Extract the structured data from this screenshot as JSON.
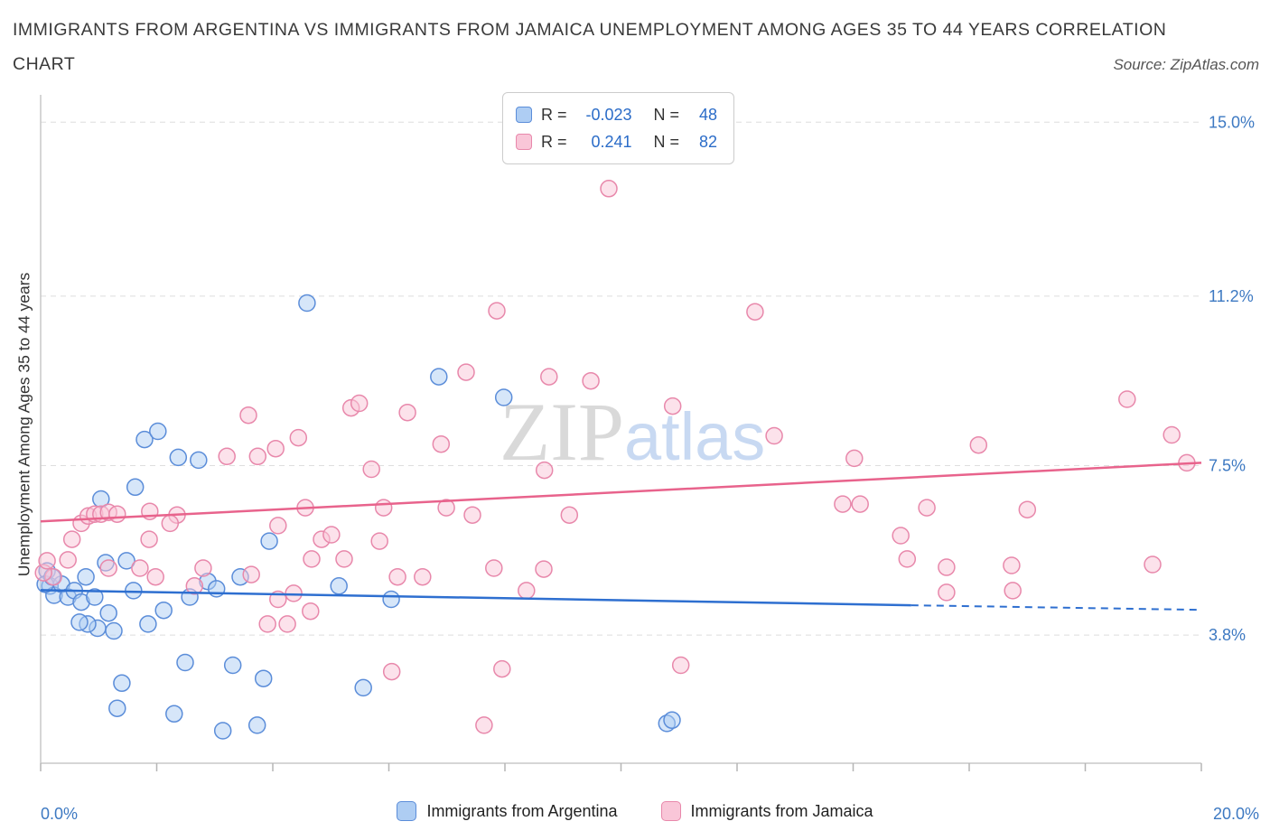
{
  "header": {
    "title_line1": "IMMIGRANTS FROM ARGENTINA VS IMMIGRANTS FROM JAMAICA UNEMPLOYMENT AMONG AGES 35 TO 44 YEARS CORRELATION",
    "title_line2": "CHART",
    "source": "Source: ZipAtlas.com"
  },
  "watermark": {
    "part1": "ZIP",
    "part2": "atlas"
  },
  "axes": {
    "y_title": "Unemployment Among Ages 35 to 44 years",
    "x_min_label": "0.0%",
    "x_max_label": "20.0%"
  },
  "stats_legend": {
    "rows": [
      {
        "key": "argentina",
        "r_label": "R =",
        "r_value": "-0.023",
        "n_label": "N =",
        "n_value": "48"
      },
      {
        "key": "jamaica",
        "r_label": "R =",
        "r_value": "0.241",
        "n_label": "N =",
        "n_value": "82"
      }
    ]
  },
  "bottom_legend": {
    "argentina": "Immigrants from Argentina",
    "jamaica": "Immigrants from Jamaica"
  },
  "colors": {
    "tick_label": "#3d79c2",
    "stat_value": "#2b6cc8",
    "grid": "#dedede",
    "axis": "#c8c8c8",
    "argentina_fill": "#aecdf3",
    "argentina_stroke": "#5b8dd9",
    "jamaica_fill": "#f9c6d8",
    "jamaica_stroke": "#e888ab",
    "argentina_trend": "#2e6fd0",
    "jamaica_trend": "#e8638c"
  },
  "chart_data": {
    "type": "scatter",
    "title": "Immigrants from Argentina vs Immigrants from Jamaica Unemployment Among Ages 35 to 44 years Correlation Chart",
    "xlabel": "",
    "ylabel": "Unemployment Among Ages 35 to 44 years",
    "xlim": [
      0,
      20
    ],
    "ylim": [
      1.0,
      15.4
    ],
    "legend_position": "bottom-center",
    "grid": "horizontal-dashed",
    "gridlines": [
      {
        "value": 15.0,
        "label": "15.0%"
      },
      {
        "value": 11.2,
        "label": "11.2%"
      },
      {
        "value": 7.5,
        "label": "7.5%"
      },
      {
        "value": 3.8,
        "label": "3.8%"
      }
    ],
    "x_ticks": [
      0,
      2,
      4,
      6,
      8,
      10,
      12,
      14,
      16,
      18,
      20
    ],
    "series": [
      {
        "key": "argentina",
        "name": "Immigrants from Argentina",
        "R": -0.023,
        "N": 48,
        "fill": "#aecdf3",
        "stroke": "#5b8dd9",
        "points": [
          [
            0.11,
            5.2
          ],
          [
            0.16,
            4.87
          ],
          [
            0.23,
            4.67
          ],
          [
            0.36,
            4.91
          ],
          [
            0.47,
            4.63
          ],
          [
            0.58,
            4.77
          ],
          [
            0.7,
            4.52
          ],
          [
            0.78,
            5.07
          ],
          [
            0.93,
            4.63
          ],
          [
            1.12,
            5.38
          ],
          [
            1.48,
            5.42
          ],
          [
            1.6,
            4.77
          ],
          [
            1.79,
            8.07
          ],
          [
            2.02,
            8.25
          ],
          [
            2.37,
            7.68
          ],
          [
            2.72,
            7.62
          ],
          [
            4.59,
            11.05
          ],
          [
            6.86,
            9.44
          ],
          [
            7.98,
            8.99
          ],
          [
            3.94,
            5.85
          ],
          [
            3.44,
            5.07
          ],
          [
            2.88,
            4.97
          ],
          [
            3.03,
            4.81
          ],
          [
            2.57,
            4.63
          ],
          [
            2.12,
            4.34
          ],
          [
            1.85,
            4.04
          ],
          [
            1.26,
            3.89
          ],
          [
            0.98,
            3.95
          ],
          [
            1.4,
            2.75
          ],
          [
            1.32,
            2.2
          ],
          [
            2.49,
            3.2
          ],
          [
            2.3,
            2.08
          ],
          [
            3.14,
            1.71
          ],
          [
            3.73,
            1.83
          ],
          [
            3.84,
            2.85
          ],
          [
            3.31,
            3.14
          ],
          [
            5.56,
            2.65
          ],
          [
            6.04,
            4.58
          ],
          [
            5.14,
            4.87
          ],
          [
            10.79,
            1.87
          ],
          [
            10.88,
            1.94
          ],
          [
            1.17,
            4.28
          ],
          [
            0.81,
            4.04
          ],
          [
            0.67,
            4.08
          ],
          [
            0.08,
            4.91
          ],
          [
            0.2,
            5.07
          ],
          [
            1.04,
            6.77
          ],
          [
            1.63,
            7.03
          ]
        ]
      },
      {
        "key": "jamaica",
        "name": "Immigrants from Jamaica",
        "R": 0.241,
        "N": 82,
        "fill": "#f9c6d8",
        "stroke": "#e888ab",
        "points": [
          [
            10.24,
            14.43
          ],
          [
            9.79,
            13.55
          ],
          [
            7.86,
            10.88
          ],
          [
            12.31,
            10.86
          ],
          [
            7.33,
            9.54
          ],
          [
            8.76,
            9.44
          ],
          [
            9.48,
            9.35
          ],
          [
            3.58,
            8.6
          ],
          [
            6.32,
            8.66
          ],
          [
            5.35,
            8.76
          ],
          [
            5.49,
            8.86
          ],
          [
            10.89,
            8.8
          ],
          [
            18.72,
            8.95
          ],
          [
            19.49,
            8.17
          ],
          [
            19.75,
            7.56
          ],
          [
            16.16,
            7.95
          ],
          [
            12.64,
            8.15
          ],
          [
            14.02,
            7.66
          ],
          [
            4.05,
            7.87
          ],
          [
            4.44,
            8.11
          ],
          [
            3.21,
            7.7
          ],
          [
            3.74,
            7.7
          ],
          [
            6.9,
            7.97
          ],
          [
            5.7,
            7.42
          ],
          [
            8.68,
            7.4
          ],
          [
            1.88,
            6.5
          ],
          [
            2.35,
            6.42
          ],
          [
            2.23,
            6.24
          ],
          [
            4.56,
            6.58
          ],
          [
            5.91,
            6.58
          ],
          [
            9.11,
            6.42
          ],
          [
            6.99,
            6.58
          ],
          [
            7.44,
            6.42
          ],
          [
            8.67,
            5.24
          ],
          [
            15.27,
            6.58
          ],
          [
            14.82,
            5.97
          ],
          [
            13.82,
            6.66
          ],
          [
            14.12,
            6.66
          ],
          [
            14.93,
            5.46
          ],
          [
            17.0,
            6.54
          ],
          [
            19.16,
            5.34
          ],
          [
            16.73,
            5.32
          ],
          [
            15.61,
            5.28
          ],
          [
            0.22,
            5.07
          ],
          [
            0.47,
            5.44
          ],
          [
            0.54,
            5.89
          ],
          [
            0.7,
            6.24
          ],
          [
            0.82,
            6.4
          ],
          [
            0.93,
            6.44
          ],
          [
            1.04,
            6.44
          ],
          [
            1.17,
            6.48
          ],
          [
            1.32,
            6.44
          ],
          [
            0.05,
            5.16
          ],
          [
            0.11,
            5.42
          ],
          [
            1.17,
            5.26
          ],
          [
            1.71,
            5.26
          ],
          [
            1.87,
            5.89
          ],
          [
            1.98,
            5.07
          ],
          [
            2.65,
            4.87
          ],
          [
            2.8,
            5.26
          ],
          [
            3.63,
            5.12
          ],
          [
            4.09,
            4.58
          ],
          [
            4.36,
            4.71
          ],
          [
            4.84,
            5.89
          ],
          [
            4.09,
            6.19
          ],
          [
            4.67,
            5.46
          ],
          [
            5.01,
            5.99
          ],
          [
            5.23,
            5.46
          ],
          [
            5.84,
            5.85
          ],
          [
            6.15,
            5.07
          ],
          [
            6.58,
            5.07
          ],
          [
            7.81,
            5.26
          ],
          [
            8.37,
            4.77
          ],
          [
            6.05,
            3.0
          ],
          [
            7.95,
            3.06
          ],
          [
            11.03,
            3.14
          ],
          [
            7.64,
            1.83
          ],
          [
            15.61,
            4.73
          ],
          [
            16.75,
            4.77
          ],
          [
            3.91,
            4.04
          ],
          [
            4.25,
            4.04
          ],
          [
            4.65,
            4.32
          ]
        ]
      }
    ],
    "trendlines": [
      {
        "key": "argentina",
        "color": "#2e6fd0",
        "solid": [
          [
            0,
            4.78
          ],
          [
            15,
            4.45
          ]
        ],
        "dashed": [
          [
            15,
            4.45
          ],
          [
            20,
            4.35
          ]
        ]
      },
      {
        "key": "jamaica",
        "color": "#e8638c",
        "solid": [
          [
            0,
            6.28
          ],
          [
            20,
            7.56
          ]
        ]
      }
    ]
  }
}
